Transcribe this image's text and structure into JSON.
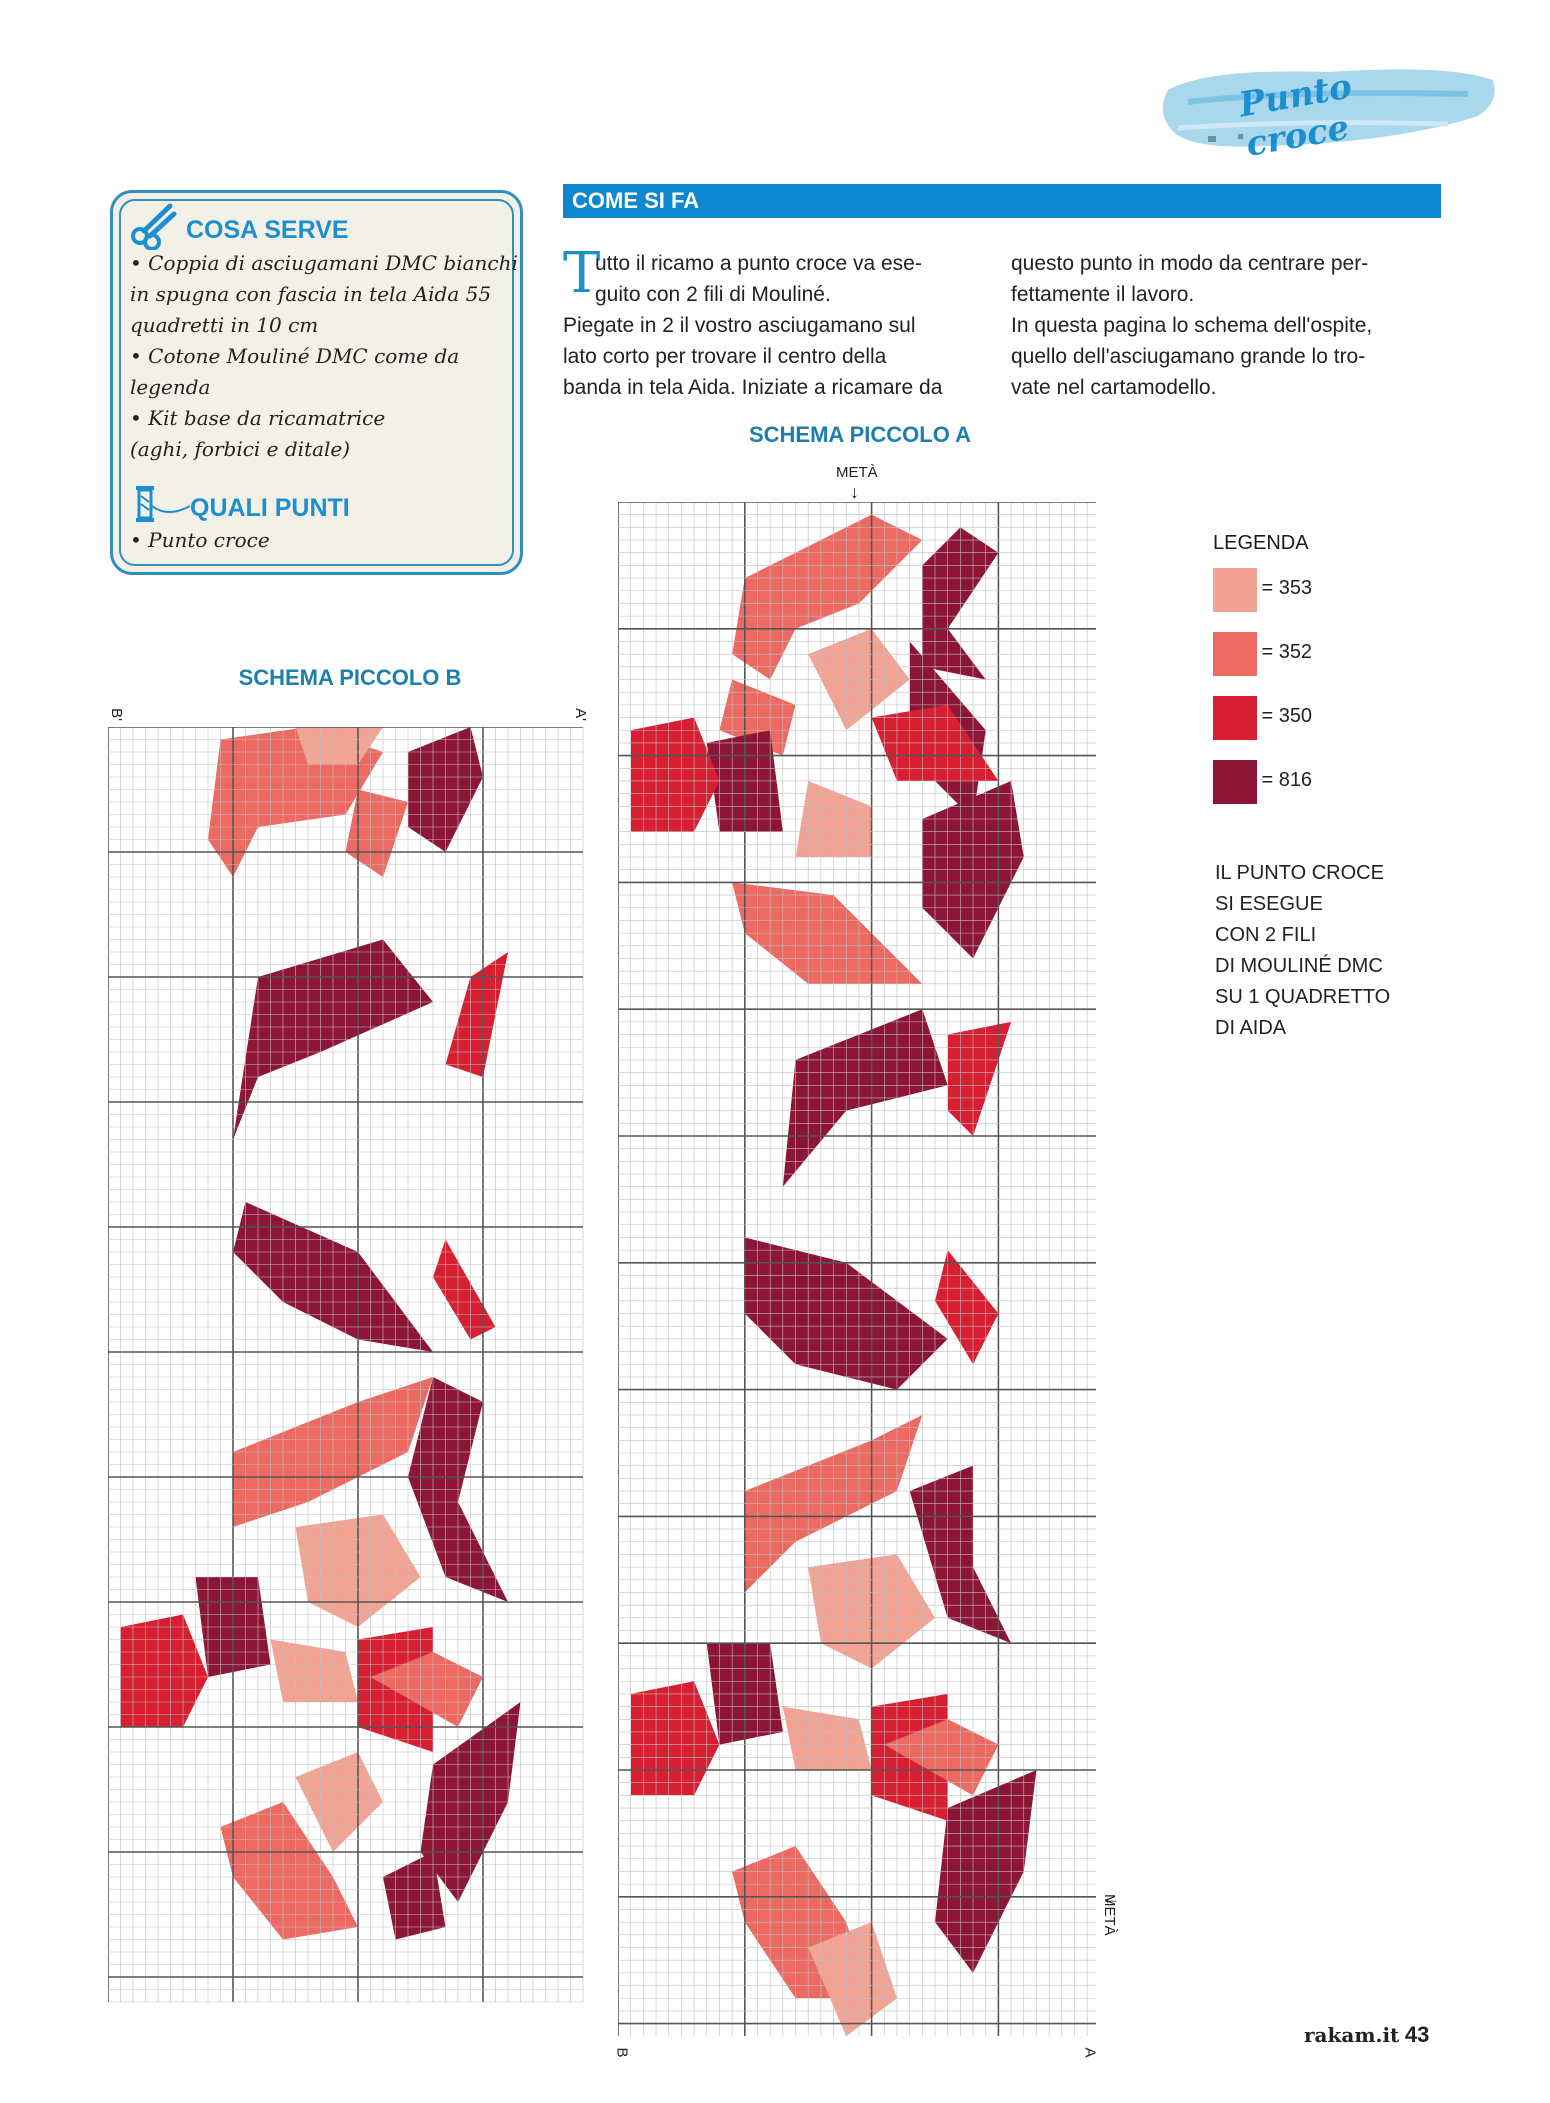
{
  "header": {
    "section_tag": "Punto croce"
  },
  "materials": {
    "title": "COSA SERVE",
    "items": [
      "• Coppia di asciugamani DMC bianchi",
      "in spugna con fascia in tela Aida 55",
      "quadretti in 10 cm",
      "• Cotone Mouliné DMC come da",
      "legenda",
      "• Kit base da ricamatrice",
      "(aghi, forbici e ditale)"
    ],
    "stitches_title": "QUALI PUNTI",
    "stitches": "• Punto croce"
  },
  "how_to": {
    "title": "COME SI FA",
    "dropcap": "T",
    "col1": [
      "utto il ricamo a punto croce va ese-",
      "guito con 2 fili di Mouliné.",
      "Piegate in 2 il vostro asciugamano sul",
      "lato corto per trovare il centro della",
      "banda in tela Aida. Iniziate a ricamare da"
    ],
    "col2": [
      "questo punto in modo da centrare per-",
      "fettamente il lavoro.",
      "In questa pagina lo schema dell'ospite,",
      "quello dell'asciugamano grande lo tro-",
      "vate nel cartamodello."
    ]
  },
  "schema_a": {
    "title": "SCHEMA PICCOLO A",
    "top_mark": "METÀ",
    "side_mark": "METÀ",
    "bottom_left": "B",
    "bottom_right": "A"
  },
  "schema_b": {
    "title": "SCHEMA PICCOLO B",
    "top_left": "B'",
    "top_right": "A'"
  },
  "legend": {
    "title": "LEGENDA",
    "items": [
      {
        "label": "= 353",
        "color": "#f3a393"
      },
      {
        "label": "= 352",
        "color": "#ec6a62"
      },
      {
        "label": "= 350",
        "color": "#d81f32"
      },
      {
        "label": "= 816",
        "color": "#8d1538"
      }
    ],
    "note": [
      "IL PUNTO CROCE",
      "SI ESEGUE",
      "CON 2 FILI",
      "DI MOULINÉ DMC",
      "SU 1 QUADRETTO",
      "DI AIDA"
    ]
  },
  "footer": {
    "site": "rakam.it",
    "page": "43"
  }
}
